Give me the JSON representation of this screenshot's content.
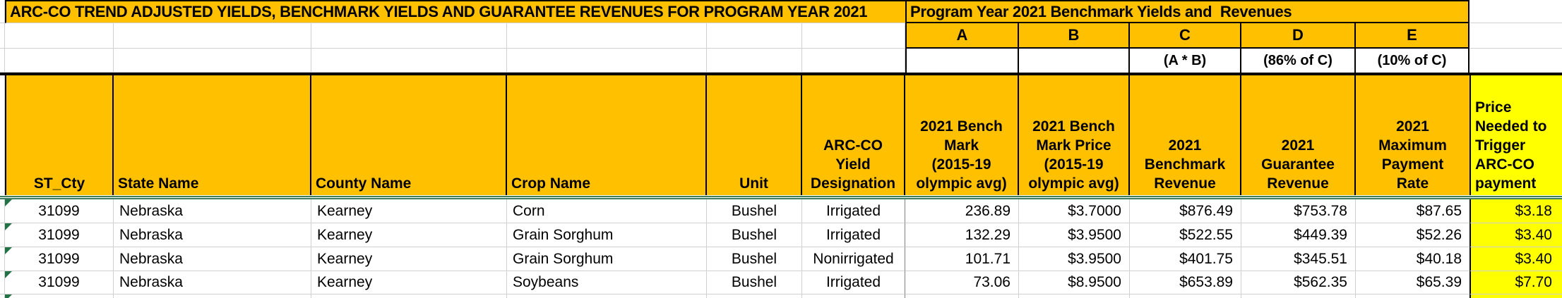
{
  "titles": {
    "main": "ARC-CO TREND ADJUSTED YIELDS, BENCHMARK YIELDS AND GUARANTEE REVENUES FOR PROGRAM YEAR 2021",
    "right": "Program Year 2021 Benchmark Yields and  Revenues"
  },
  "column_letters": [
    "A",
    "B",
    "C",
    "D",
    "E"
  ],
  "formula_labels": {
    "c": "(A * B)",
    "d": "(86% of C)",
    "e": "(10% of C)"
  },
  "headers": {
    "st_cty": "ST_Cty",
    "state_name": "State Name",
    "county_name": "County Name",
    "crop_name": "Crop Name",
    "unit": "Unit",
    "designation": "ARC-CO\nYield\nDesignation",
    "benchmark_yield": "2021 Bench\nMark\n(2015-19\nolympic avg)",
    "benchmark_price": "2021 Bench\nMark Price\n(2015-19\nolympic avg)",
    "benchmark_revenue": "2021\nBenchmark\nRevenue",
    "guarantee_revenue": "2021\nGuarantee\nRevenue",
    "max_payment_rate": "2021\nMaximum\nPayment\nRate",
    "price_needed": "Price\nNeeded to\nTrigger\nARC-CO\npayment"
  },
  "rows": [
    {
      "st_cty": "31099",
      "state_name": "Nebraska",
      "county_name": "Kearney",
      "crop_name": "Corn",
      "unit": "Bushel",
      "designation": "Irrigated",
      "benchmark_yield": "236.89",
      "benchmark_price": "$3.7000",
      "benchmark_revenue": "$876.49",
      "guarantee_revenue": "$753.78",
      "max_payment_rate": "$87.65",
      "price_needed": "$3.18"
    },
    {
      "st_cty": "31099",
      "state_name": "Nebraska",
      "county_name": "Kearney",
      "crop_name": "Grain Sorghum",
      "unit": "Bushel",
      "designation": "Irrigated",
      "benchmark_yield": "132.29",
      "benchmark_price": "$3.9500",
      "benchmark_revenue": "$522.55",
      "guarantee_revenue": "$449.39",
      "max_payment_rate": "$52.26",
      "price_needed": "$3.40"
    },
    {
      "st_cty": "31099",
      "state_name": "Nebraska",
      "county_name": "Kearney",
      "crop_name": "Grain Sorghum",
      "unit": "Bushel",
      "designation": "Nonirrigated",
      "benchmark_yield": "101.71",
      "benchmark_price": "$3.9500",
      "benchmark_revenue": "$401.75",
      "guarantee_revenue": "$345.51",
      "max_payment_rate": "$40.18",
      "price_needed": "$3.40"
    },
    {
      "st_cty": "31099",
      "state_name": "Nebraska",
      "county_name": "Kearney",
      "crop_name": "Soybeans",
      "unit": "Bushel",
      "designation": "Irrigated",
      "benchmark_yield": "73.06",
      "benchmark_price": "$8.9500",
      "benchmark_revenue": "$653.89",
      "guarantee_revenue": "$562.35",
      "max_payment_rate": "$65.39",
      "price_needed": "$7.70"
    }
  ],
  "colors": {
    "header_orange": "#FFC000",
    "highlight_yellow": "#FFFF00",
    "error_triangle_green": "#217346",
    "divider_green": "#3E7E5B",
    "gridline_gray": "#D0D0D0",
    "border_black": "#000000"
  }
}
